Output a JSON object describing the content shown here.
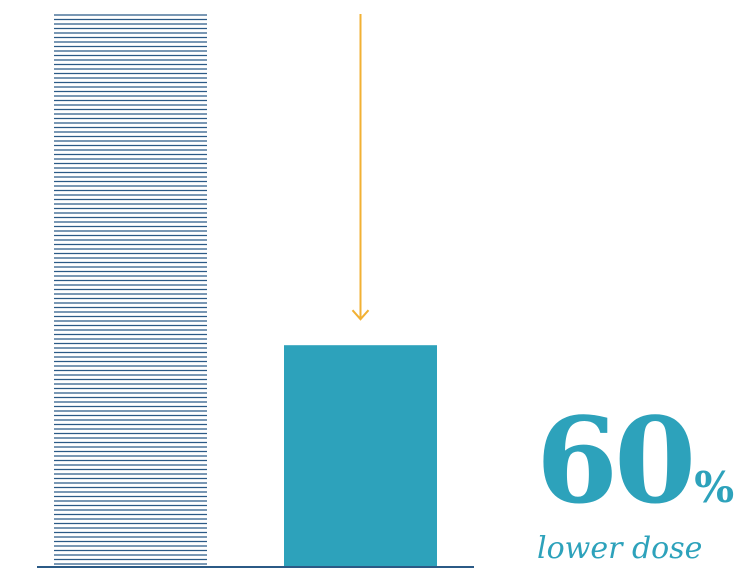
{
  "chart_data": {
    "type": "bar",
    "categories": [
      "",
      ""
    ],
    "values": [
      100,
      40
    ],
    "ylim": [
      0,
      100
    ],
    "grid": false,
    "title": "",
    "xlabel": "",
    "ylabel": ""
  },
  "highlight": {
    "number": "60",
    "unit": "%",
    "caption": "lower dose"
  },
  "colors": {
    "baseline_bar": "#2b5a86",
    "reduced_bar": "#2da2bb",
    "arrow": "#f2b134",
    "axis": "#2b5a86",
    "text": "#2da2bb"
  }
}
